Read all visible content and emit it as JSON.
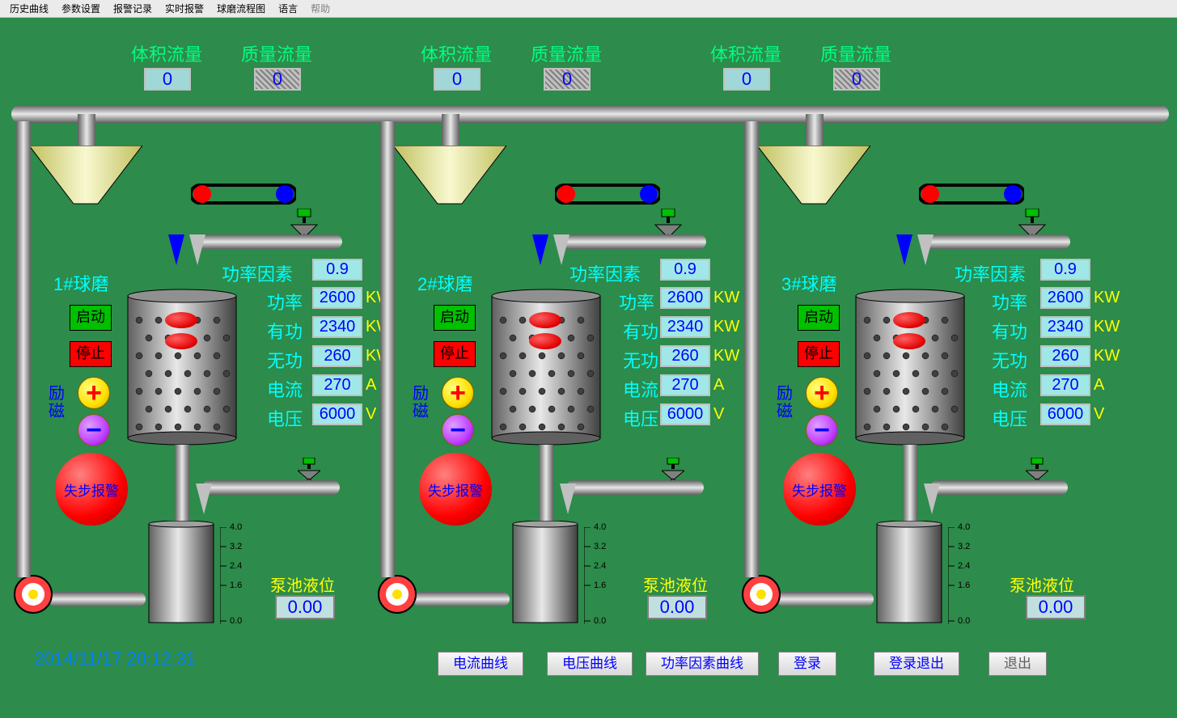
{
  "menu": {
    "m1": "历史曲线",
    "m2": "参数设置",
    "m3": "报警记录",
    "m4": "实时报警",
    "m5": "球磨流程图",
    "m6": "语言",
    "help": "帮助"
  },
  "flow": {
    "vol_label": "体积流量",
    "mass_label": "质量流量",
    "vol_val": "0",
    "mass_val": "0"
  },
  "units": {
    "u1": {
      "title": "1#球磨"
    },
    "u2": {
      "title": "2#球磨"
    },
    "u3": {
      "title": "3#球磨"
    }
  },
  "common": {
    "start": "启动",
    "stop": "停止",
    "excitation": "励磁",
    "alarm": "失步报警",
    "params": {
      "pf": {
        "label": "功率因素",
        "value": "0.9",
        "unit": ""
      },
      "power": {
        "label": "功率",
        "value": "2600",
        "unit": "KW"
      },
      "active": {
        "label": "有功",
        "value": "2340",
        "unit": "KW"
      },
      "reactive": {
        "label": "无功",
        "value": "260",
        "unit": "KW"
      },
      "current": {
        "label": "电流",
        "value": "270",
        "unit": "A"
      },
      "voltage": {
        "label": "电压",
        "value": "6000",
        "unit": "V"
      }
    },
    "level": {
      "label": "泵池液位",
      "value": "0.00"
    },
    "scale": {
      "s0": "0.0",
      "s1": "1.6",
      "s2": "2.4",
      "s3": "3.2",
      "s4": "4.0"
    }
  },
  "ts": "2014/11/17 20:12:31",
  "footer": {
    "b1": "电流曲线",
    "b2": "电压曲线",
    "b3": "功率因素曲线",
    "b4": "登录",
    "b5": "登录退出",
    "b6": "退出"
  }
}
